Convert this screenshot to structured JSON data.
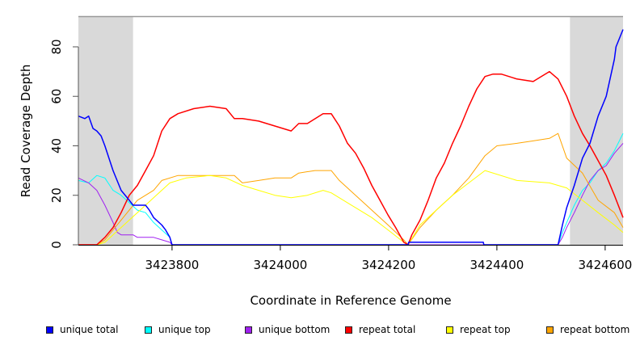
{
  "chart_data": {
    "type": "line",
    "title": "",
    "xlabel": "Coordinate in Reference Genome",
    "ylabel": "Read Coverage Depth",
    "xlim": [
      3423627,
      3424633
    ],
    "ylim": [
      0,
      92.4
    ],
    "xticks": [
      3423800,
      3424000,
      3424200,
      3424400,
      3424600
    ],
    "xtick_labels": [
      "3423800",
      "3424000",
      "3424200",
      "3424400",
      "3424600"
    ],
    "yticks": [
      0,
      20,
      40,
      60,
      80
    ],
    "ytick_labels": [
      "0",
      "20",
      "40",
      "60",
      "80"
    ],
    "grid": false,
    "shaded_regions": [
      [
        3423627,
        3423728
      ],
      [
        3424535,
        3424633
      ]
    ],
    "shade_color": "#d9d9d9",
    "legend_placement": "bottom",
    "series": [
      {
        "name": "unique total",
        "color": "#0000ff",
        "width": 1.5,
        "points": [
          [
            3423627,
            52
          ],
          [
            3423639,
            51
          ],
          [
            3423646,
            52
          ],
          [
            3423654,
            47
          ],
          [
            3423661,
            46
          ],
          [
            3423669,
            44
          ],
          [
            3423676,
            40
          ],
          [
            3423691,
            30
          ],
          [
            3423706,
            22
          ],
          [
            3423721,
            18
          ],
          [
            3423728,
            16
          ],
          [
            3423751,
            16
          ],
          [
            3423758,
            14
          ],
          [
            3423766,
            11
          ],
          [
            3423781,
            8
          ],
          [
            3423788,
            6
          ],
          [
            3423796,
            3
          ],
          [
            3423800,
            0
          ],
          [
            3424236,
            0
          ],
          [
            3424237,
            1
          ],
          [
            3424375,
            1
          ],
          [
            3424376,
            0
          ],
          [
            3424513,
            0
          ],
          [
            3424521,
            8
          ],
          [
            3424529,
            15
          ],
          [
            3424543,
            24
          ],
          [
            3424558,
            35
          ],
          [
            3424572,
            41
          ],
          [
            3424587,
            52
          ],
          [
            3424602,
            60
          ],
          [
            3424617,
            75
          ],
          [
            3424620,
            80
          ],
          [
            3424633,
            87
          ]
        ]
      },
      {
        "name": "unique top",
        "color": "#00ffff",
        "width": 1,
        "points": [
          [
            3423627,
            26
          ],
          [
            3423646,
            25
          ],
          [
            3423661,
            28
          ],
          [
            3423676,
            27
          ],
          [
            3423691,
            22
          ],
          [
            3423706,
            20
          ],
          [
            3423721,
            17
          ],
          [
            3423736,
            14
          ],
          [
            3423751,
            13
          ],
          [
            3423766,
            9
          ],
          [
            3423781,
            6
          ],
          [
            3423796,
            3
          ],
          [
            3423800,
            0
          ],
          [
            3424513,
            0
          ],
          [
            3424521,
            5
          ],
          [
            3424529,
            9
          ],
          [
            3424543,
            16
          ],
          [
            3424558,
            22
          ],
          [
            3424572,
            25
          ],
          [
            3424587,
            30
          ],
          [
            3424602,
            33
          ],
          [
            3424617,
            38
          ],
          [
            3424633,
            45
          ]
        ]
      },
      {
        "name": "unique bottom",
        "color": "#a020f0",
        "width": 1,
        "points": [
          [
            3423627,
            27
          ],
          [
            3423646,
            25
          ],
          [
            3423661,
            22
          ],
          [
            3423676,
            16
          ],
          [
            3423691,
            9
          ],
          [
            3423699,
            5
          ],
          [
            3423706,
            4
          ],
          [
            3423728,
            4
          ],
          [
            3423736,
            3
          ],
          [
            3423766,
            3
          ],
          [
            3423781,
            2
          ],
          [
            3423796,
            1
          ],
          [
            3423800,
            0
          ],
          [
            3424513,
            0
          ],
          [
            3424521,
            3
          ],
          [
            3424529,
            7
          ],
          [
            3424543,
            13
          ],
          [
            3424558,
            20
          ],
          [
            3424572,
            26
          ],
          [
            3424587,
            30
          ],
          [
            3424602,
            32
          ],
          [
            3424617,
            37
          ],
          [
            3424633,
            41
          ]
        ]
      },
      {
        "name": "repeat total",
        "color": "#ff0000",
        "width": 1.5,
        "points": [
          [
            3423627,
            0
          ],
          [
            3423661,
            0
          ],
          [
            3423676,
            3
          ],
          [
            3423691,
            7
          ],
          [
            3423706,
            13
          ],
          [
            3423721,
            20
          ],
          [
            3423736,
            24
          ],
          [
            3423751,
            30
          ],
          [
            3423766,
            36
          ],
          [
            3423781,
            46
          ],
          [
            3423796,
            51
          ],
          [
            3423811,
            53
          ],
          [
            3423840,
            55
          ],
          [
            3423870,
            56
          ],
          [
            3423900,
            55
          ],
          [
            3423915,
            51
          ],
          [
            3423930,
            51
          ],
          [
            3423960,
            50
          ],
          [
            3423990,
            48
          ],
          [
            3424020,
            46
          ],
          [
            3424034,
            49
          ],
          [
            3424050,
            49
          ],
          [
            3424079,
            53
          ],
          [
            3424094,
            53
          ],
          [
            3424109,
            48
          ],
          [
            3424124,
            41
          ],
          [
            3424139,
            37
          ],
          [
            3424154,
            31
          ],
          [
            3424169,
            24
          ],
          [
            3424184,
            18
          ],
          [
            3424199,
            12
          ],
          [
            3424213,
            7
          ],
          [
            3424228,
            1
          ],
          [
            3424236,
            0
          ],
          [
            3424243,
            4
          ],
          [
            3424258,
            10
          ],
          [
            3424273,
            18
          ],
          [
            3424288,
            27
          ],
          [
            3424303,
            33
          ],
          [
            3424318,
            41
          ],
          [
            3424333,
            48
          ],
          [
            3424348,
            56
          ],
          [
            3424363,
            63
          ],
          [
            3424378,
            68
          ],
          [
            3424393,
            69
          ],
          [
            3424408,
            69
          ],
          [
            3424437,
            67
          ],
          [
            3424467,
            66
          ],
          [
            3424482,
            68
          ],
          [
            3424497,
            70
          ],
          [
            3424513,
            67
          ],
          [
            3424529,
            60
          ],
          [
            3424543,
            52
          ],
          [
            3424558,
            45
          ],
          [
            3424572,
            40
          ],
          [
            3424587,
            34
          ],
          [
            3424602,
            28
          ],
          [
            3424617,
            20
          ],
          [
            3424633,
            11
          ]
        ]
      },
      {
        "name": "repeat top",
        "color": "#ffff00",
        "width": 1,
        "points": [
          [
            3423627,
            0
          ],
          [
            3423661,
            0
          ],
          [
            3423676,
            1
          ],
          [
            3423706,
            7
          ],
          [
            3423736,
            13
          ],
          [
            3423766,
            19
          ],
          [
            3423796,
            25
          ],
          [
            3423826,
            27
          ],
          [
            3423870,
            28
          ],
          [
            3423900,
            27
          ],
          [
            3423930,
            24
          ],
          [
            3423960,
            22
          ],
          [
            3423990,
            20
          ],
          [
            3424020,
            19
          ],
          [
            3424050,
            20
          ],
          [
            3424079,
            22
          ],
          [
            3424094,
            21
          ],
          [
            3424109,
            19
          ],
          [
            3424139,
            15
          ],
          [
            3424169,
            11
          ],
          [
            3424199,
            6
          ],
          [
            3424228,
            1
          ],
          [
            3424236,
            0
          ],
          [
            3424258,
            8
          ],
          [
            3424288,
            14
          ],
          [
            3424318,
            20
          ],
          [
            3424348,
            25
          ],
          [
            3424378,
            30
          ],
          [
            3424437,
            26
          ],
          [
            3424497,
            25
          ],
          [
            3424529,
            23
          ],
          [
            3424558,
            18
          ],
          [
            3424587,
            13
          ],
          [
            3424617,
            8
          ],
          [
            3424633,
            5
          ]
        ]
      },
      {
        "name": "repeat bottom",
        "color": "#ffa500",
        "width": 1,
        "points": [
          [
            3423627,
            0
          ],
          [
            3423661,
            0
          ],
          [
            3423676,
            2
          ],
          [
            3423691,
            6
          ],
          [
            3423706,
            10
          ],
          [
            3423721,
            14
          ],
          [
            3423736,
            18
          ],
          [
            3423766,
            22
          ],
          [
            3423781,
            26
          ],
          [
            3423811,
            28
          ],
          [
            3423870,
            28
          ],
          [
            3423915,
            28
          ],
          [
            3423930,
            25
          ],
          [
            3423960,
            26
          ],
          [
            3423990,
            27
          ],
          [
            3424020,
            27
          ],
          [
            3424034,
            29
          ],
          [
            3424064,
            30
          ],
          [
            3424094,
            30
          ],
          [
            3424109,
            26
          ],
          [
            3424139,
            20
          ],
          [
            3424169,
            14
          ],
          [
            3424199,
            8
          ],
          [
            3424228,
            2
          ],
          [
            3424236,
            0
          ],
          [
            3424258,
            7
          ],
          [
            3424288,
            14
          ],
          [
            3424318,
            20
          ],
          [
            3424348,
            27
          ],
          [
            3424378,
            36
          ],
          [
            3424400,
            40
          ],
          [
            3424437,
            41
          ],
          [
            3424467,
            42
          ],
          [
            3424497,
            43
          ],
          [
            3424513,
            45
          ],
          [
            3424529,
            35
          ],
          [
            3424558,
            29
          ],
          [
            3424587,
            18
          ],
          [
            3424617,
            13
          ],
          [
            3424633,
            7
          ]
        ]
      }
    ]
  }
}
